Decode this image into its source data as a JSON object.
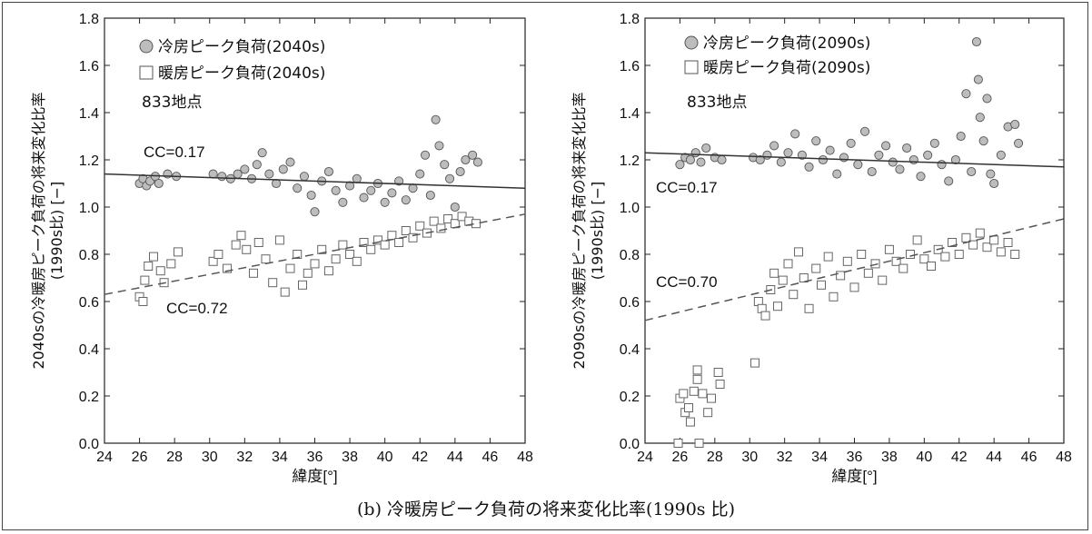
{
  "caption": "(b) 冷暖房ピーク負荷の将来変化比率(1990s 比)",
  "chart_data": [
    {
      "type": "scatter",
      "ylabel": "2040sの冷暖房ピーク負荷の将来変化比率\n(1990s比) [−]",
      "xlabel": "緯度[°]",
      "xlim": [
        24,
        48
      ],
      "ylim": [
        0.0,
        1.8
      ],
      "xticks": [
        "24",
        "26",
        "28",
        "30",
        "32",
        "34",
        "36",
        "38",
        "40",
        "42",
        "44",
        "46",
        "48"
      ],
      "yticks": [
        "0.0",
        "0.2",
        "0.4",
        "0.6",
        "0.8",
        "1.0",
        "1.2",
        "1.4",
        "1.6",
        "1.8"
      ],
      "annotation": "833地点",
      "series": [
        {
          "name": "冷房ピーク負荷(2040s)",
          "marker": "circle",
          "cc": "CC=0.17",
          "fit": [
            [
              24,
              1.14
            ],
            [
              48,
              1.08
            ]
          ],
          "points": [
            [
              26.0,
              1.1
            ],
            [
              26.2,
              1.12
            ],
            [
              26.4,
              1.09
            ],
            [
              26.6,
              1.11
            ],
            [
              26.9,
              1.13
            ],
            [
              27.1,
              1.1
            ],
            [
              27.6,
              1.14
            ],
            [
              28.1,
              1.13
            ],
            [
              30.2,
              1.14
            ],
            [
              30.7,
              1.13
            ],
            [
              31.2,
              1.12
            ],
            [
              31.6,
              1.14
            ],
            [
              32.0,
              1.16
            ],
            [
              32.4,
              1.12
            ],
            [
              32.7,
              1.18
            ],
            [
              33.0,
              1.23
            ],
            [
              33.4,
              1.14
            ],
            [
              33.8,
              1.1
            ],
            [
              34.2,
              1.16
            ],
            [
              34.6,
              1.19
            ],
            [
              35.0,
              1.08
            ],
            [
              35.4,
              1.13
            ],
            [
              35.8,
              1.05
            ],
            [
              36.0,
              0.98
            ],
            [
              36.4,
              1.11
            ],
            [
              36.8,
              1.15
            ],
            [
              37.2,
              1.07
            ],
            [
              37.6,
              1.02
            ],
            [
              38.0,
              1.09
            ],
            [
              38.4,
              1.12
            ],
            [
              38.8,
              1.04
            ],
            [
              39.2,
              1.07
            ],
            [
              39.6,
              1.1
            ],
            [
              40.0,
              1.02
            ],
            [
              40.4,
              1.06
            ],
            [
              40.8,
              1.11
            ],
            [
              41.2,
              1.03
            ],
            [
              41.6,
              1.08
            ],
            [
              42.0,
              1.14
            ],
            [
              42.3,
              1.22
            ],
            [
              42.6,
              1.05
            ],
            [
              42.9,
              1.37
            ],
            [
              43.1,
              1.26
            ],
            [
              43.4,
              1.18
            ],
            [
              43.7,
              1.12
            ],
            [
              44.0,
              1.0
            ],
            [
              44.3,
              1.15
            ],
            [
              44.6,
              1.2
            ],
            [
              45.0,
              1.22
            ],
            [
              45.3,
              1.19
            ]
          ]
        },
        {
          "name": "暖房ピーク負荷(2040s)",
          "marker": "square",
          "cc": "CC=0.72",
          "fit": [
            [
              24,
              0.63
            ],
            [
              48,
              0.97
            ]
          ],
          "points": [
            [
              26.0,
              0.62
            ],
            [
              26.2,
              0.6
            ],
            [
              26.3,
              0.69
            ],
            [
              26.5,
              0.75
            ],
            [
              26.8,
              0.79
            ],
            [
              27.2,
              0.73
            ],
            [
              27.4,
              0.68
            ],
            [
              27.8,
              0.76
            ],
            [
              28.2,
              0.81
            ],
            [
              30.2,
              0.77
            ],
            [
              30.5,
              0.8
            ],
            [
              31.0,
              0.74
            ],
            [
              31.5,
              0.84
            ],
            [
              31.8,
              0.88
            ],
            [
              32.1,
              0.82
            ],
            [
              32.5,
              0.72
            ],
            [
              32.8,
              0.85
            ],
            [
              33.2,
              0.78
            ],
            [
              33.6,
              0.68
            ],
            [
              34.0,
              0.86
            ],
            [
              34.3,
              0.64
            ],
            [
              34.6,
              0.74
            ],
            [
              35.0,
              0.8
            ],
            [
              35.3,
              0.67
            ],
            [
              35.6,
              0.72
            ],
            [
              36.0,
              0.76
            ],
            [
              36.4,
              0.82
            ],
            [
              36.8,
              0.73
            ],
            [
              37.2,
              0.78
            ],
            [
              37.6,
              0.84
            ],
            [
              38.0,
              0.8
            ],
            [
              38.4,
              0.77
            ],
            [
              38.8,
              0.85
            ],
            [
              39.2,
              0.82
            ],
            [
              39.6,
              0.86
            ],
            [
              40.0,
              0.84
            ],
            [
              40.4,
              0.88
            ],
            [
              40.8,
              0.85
            ],
            [
              41.2,
              0.9
            ],
            [
              41.6,
              0.87
            ],
            [
              42.0,
              0.92
            ],
            [
              42.4,
              0.89
            ],
            [
              42.8,
              0.94
            ],
            [
              43.2,
              0.91
            ],
            [
              43.6,
              0.95
            ],
            [
              44.0,
              0.93
            ],
            [
              44.4,
              0.96
            ],
            [
              44.8,
              0.94
            ],
            [
              45.2,
              0.93
            ]
          ]
        }
      ]
    },
    {
      "type": "scatter",
      "ylabel": "2090sの冷暖房ピーク負荷の将来変化比率\n(1990s比) [−]",
      "xlabel": "緯度[°]",
      "xlim": [
        24,
        48
      ],
      "ylim": [
        0.0,
        1.8
      ],
      "xticks": [
        "24",
        "26",
        "28",
        "30",
        "32",
        "34",
        "36",
        "38",
        "40",
        "42",
        "44",
        "46",
        "48"
      ],
      "yticks": [
        "0.0",
        "0.2",
        "0.4",
        "0.6",
        "0.8",
        "1.0",
        "1.2",
        "1.4",
        "1.6",
        "1.8"
      ],
      "annotation": "833地点",
      "series": [
        {
          "name": "冷房ピーク負荷(2090s)",
          "marker": "circle",
          "cc": "CC=0.17",
          "fit": [
            [
              24,
              1.23
            ],
            [
              48,
              1.17
            ]
          ],
          "points": [
            [
              26.0,
              1.18
            ],
            [
              26.3,
              1.21
            ],
            [
              26.6,
              1.2
            ],
            [
              26.9,
              1.23
            ],
            [
              27.2,
              1.19
            ],
            [
              27.5,
              1.25
            ],
            [
              28.0,
              1.21
            ],
            [
              28.4,
              1.2
            ],
            [
              30.2,
              1.21
            ],
            [
              30.6,
              1.2
            ],
            [
              31.0,
              1.22
            ],
            [
              31.4,
              1.26
            ],
            [
              31.8,
              1.19
            ],
            [
              32.2,
              1.23
            ],
            [
              32.6,
              1.31
            ],
            [
              33.0,
              1.22
            ],
            [
              33.4,
              1.17
            ],
            [
              33.8,
              1.28
            ],
            [
              34.2,
              1.2
            ],
            [
              34.6,
              1.24
            ],
            [
              35.0,
              1.14
            ],
            [
              35.4,
              1.21
            ],
            [
              35.8,
              1.27
            ],
            [
              36.2,
              1.18
            ],
            [
              36.6,
              1.32
            ],
            [
              37.0,
              1.15
            ],
            [
              37.4,
              1.22
            ],
            [
              37.8,
              1.26
            ],
            [
              38.2,
              1.19
            ],
            [
              38.6,
              1.16
            ],
            [
              39.0,
              1.25
            ],
            [
              39.4,
              1.2
            ],
            [
              39.8,
              1.13
            ],
            [
              40.2,
              1.22
            ],
            [
              40.6,
              1.27
            ],
            [
              41.0,
              1.18
            ],
            [
              41.4,
              1.11
            ],
            [
              41.8,
              1.2
            ],
            [
              42.1,
              1.3
            ],
            [
              42.4,
              1.48
            ],
            [
              42.7,
              1.15
            ],
            [
              43.0,
              1.7
            ],
            [
              43.1,
              1.54
            ],
            [
              43.2,
              1.38
            ],
            [
              43.4,
              1.28
            ],
            [
              43.6,
              1.46
            ],
            [
              43.8,
              1.14
            ],
            [
              44.0,
              1.1
            ],
            [
              44.4,
              1.22
            ],
            [
              44.8,
              1.34
            ],
            [
              45.2,
              1.35
            ],
            [
              45.4,
              1.27
            ]
          ]
        },
        {
          "name": "暖房ピーク負荷(2090s)",
          "marker": "square",
          "cc": "CC=0.70",
          "fit": [
            [
              24,
              0.52
            ],
            [
              48,
              0.95
            ]
          ],
          "points": [
            [
              25.9,
              0.0
            ],
            [
              26.0,
              0.19
            ],
            [
              26.2,
              0.21
            ],
            [
              26.3,
              0.13
            ],
            [
              26.5,
              0.15
            ],
            [
              26.6,
              0.09
            ],
            [
              26.8,
              0.22
            ],
            [
              27.0,
              0.31
            ],
            [
              27.0,
              0.27
            ],
            [
              27.1,
              0.0
            ],
            [
              27.3,
              0.21
            ],
            [
              27.6,
              0.13
            ],
            [
              27.8,
              0.19
            ],
            [
              28.2,
              0.3
            ],
            [
              28.3,
              0.25
            ],
            [
              30.3,
              0.34
            ],
            [
              30.5,
              0.6
            ],
            [
              30.7,
              0.57
            ],
            [
              30.9,
              0.54
            ],
            [
              31.2,
              0.65
            ],
            [
              31.4,
              0.72
            ],
            [
              31.6,
              0.58
            ],
            [
              31.9,
              0.69
            ],
            [
              32.2,
              0.76
            ],
            [
              32.5,
              0.63
            ],
            [
              32.8,
              0.81
            ],
            [
              33.1,
              0.7
            ],
            [
              33.4,
              0.57
            ],
            [
              33.8,
              0.74
            ],
            [
              34.1,
              0.67
            ],
            [
              34.5,
              0.79
            ],
            [
              34.8,
              0.62
            ],
            [
              35.2,
              0.71
            ],
            [
              35.6,
              0.77
            ],
            [
              36.0,
              0.66
            ],
            [
              36.4,
              0.8
            ],
            [
              36.8,
              0.72
            ],
            [
              37.2,
              0.76
            ],
            [
              37.6,
              0.69
            ],
            [
              38.0,
              0.82
            ],
            [
              38.4,
              0.77
            ],
            [
              38.8,
              0.74
            ],
            [
              39.2,
              0.8
            ],
            [
              39.6,
              0.86
            ],
            [
              40.0,
              0.78
            ],
            [
              40.4,
              0.75
            ],
            [
              40.8,
              0.82
            ],
            [
              41.2,
              0.79
            ],
            [
              41.6,
              0.85
            ],
            [
              42.0,
              0.8
            ],
            [
              42.4,
              0.87
            ],
            [
              42.8,
              0.84
            ],
            [
              43.2,
              0.89
            ],
            [
              43.6,
              0.83
            ],
            [
              44.0,
              0.86
            ],
            [
              44.4,
              0.81
            ],
            [
              44.8,
              0.85
            ],
            [
              45.2,
              0.8
            ]
          ]
        }
      ]
    }
  ]
}
